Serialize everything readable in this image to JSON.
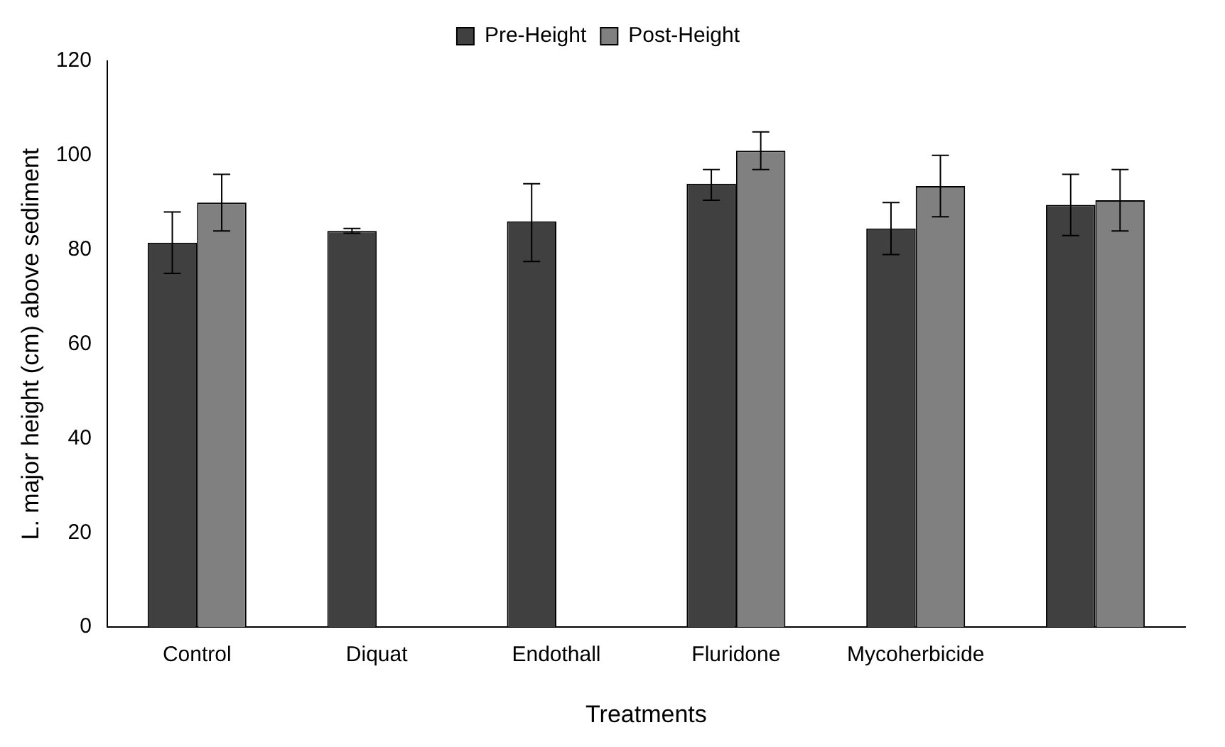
{
  "chart_data": {
    "type": "bar",
    "xlabel": "Treatments",
    "ylabel": "L. major height (cm) above sediment",
    "categories": [
      "Control",
      "Diquat",
      "Endothall",
      "Fluridone",
      "Mycoherbicide",
      null
    ],
    "series": [
      {
        "name": "Pre-Height",
        "color": "#404040",
        "values": [
          81.5,
          84,
          86,
          94,
          84.5,
          89.5
        ],
        "errors": [
          [
            75,
            88
          ],
          [
            83.5,
            84.5
          ],
          [
            77.5,
            94
          ],
          [
            90.5,
            97
          ],
          [
            79,
            90
          ],
          [
            83,
            96
          ]
        ]
      },
      {
        "name": "Post-Height",
        "color": "#808080",
        "values": [
          90,
          0,
          0,
          101,
          93.5,
          90.5
        ],
        "errors": [
          [
            84,
            96
          ],
          null,
          null,
          [
            97,
            105
          ],
          [
            87,
            100
          ],
          [
            84,
            97
          ]
        ]
      }
    ],
    "ylim": [
      0,
      120
    ],
    "yticks": [
      0,
      20,
      40,
      60,
      80,
      100,
      120
    ],
    "grid": false,
    "legend": "top"
  }
}
